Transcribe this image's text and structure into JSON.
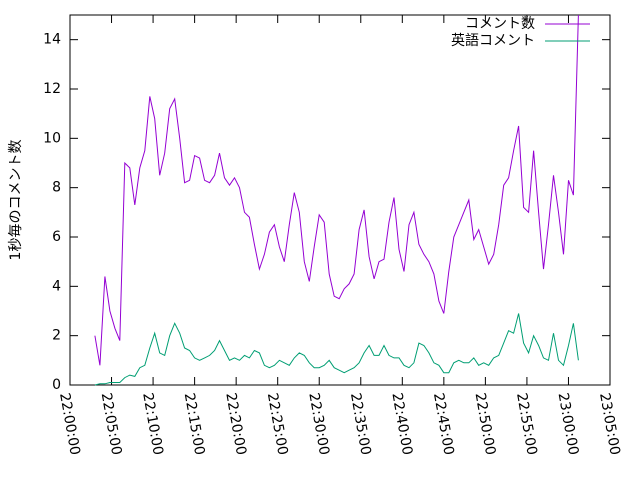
{
  "chart_data": {
    "type": "line",
    "y_label": "1秒毎のコメント数",
    "x": [
      "22:03:00",
      "22:03:36",
      "22:04:12",
      "22:04:48",
      "22:05:24",
      "22:06:00",
      "22:06:36",
      "22:07:12",
      "22:07:48",
      "22:08:24",
      "22:09:00",
      "22:09:36",
      "22:10:12",
      "22:10:48",
      "22:11:24",
      "22:12:00",
      "22:12:36",
      "22:13:12",
      "22:13:48",
      "22:14:24",
      "22:15:00",
      "22:15:36",
      "22:16:12",
      "22:16:48",
      "22:17:24",
      "22:18:00",
      "22:18:36",
      "22:19:12",
      "22:19:48",
      "22:20:24",
      "22:21:00",
      "22:21:36",
      "22:22:12",
      "22:22:48",
      "22:23:24",
      "22:24:00",
      "22:24:36",
      "22:25:12",
      "22:25:48",
      "22:26:24",
      "22:27:00",
      "22:27:36",
      "22:28:12",
      "22:28:48",
      "22:29:24",
      "22:30:00",
      "22:30:36",
      "22:31:12",
      "22:31:48",
      "22:32:24",
      "22:33:00",
      "22:33:36",
      "22:34:12",
      "22:34:48",
      "22:35:24",
      "22:36:00",
      "22:36:36",
      "22:37:12",
      "22:37:48",
      "22:38:24",
      "22:39:00",
      "22:39:36",
      "22:40:12",
      "22:40:48",
      "22:41:24",
      "22:42:00",
      "22:42:36",
      "22:43:12",
      "22:43:48",
      "22:44:24",
      "22:45:00",
      "22:45:36",
      "22:46:12",
      "22:46:48",
      "22:47:24",
      "22:48:00",
      "22:48:36",
      "22:49:12",
      "22:49:48",
      "22:50:24",
      "22:51:00",
      "22:51:36",
      "22:52:12",
      "22:52:48",
      "22:53:24",
      "22:54:00",
      "22:54:36",
      "22:55:12",
      "22:55:48",
      "22:56:24",
      "22:57:00",
      "22:57:36",
      "22:58:12",
      "22:58:48",
      "22:59:24",
      "23:00:00",
      "23:00:36",
      "23:01:12"
    ],
    "series": [
      {
        "name": "コメント数",
        "color": "#9400d3",
        "values": [
          2.0,
          0.8,
          4.4,
          3.0,
          2.3,
          1.8,
          9.0,
          8.8,
          7.3,
          8.8,
          9.5,
          11.7,
          10.8,
          8.5,
          9.4,
          11.2,
          11.6,
          10.0,
          8.2,
          8.3,
          9.3,
          9.2,
          8.3,
          8.2,
          8.5,
          9.4,
          8.4,
          8.1,
          8.4,
          8.0,
          7.0,
          6.8,
          5.7,
          4.7,
          5.3,
          6.2,
          6.5,
          5.6,
          5.0,
          6.5,
          7.8,
          7.0,
          5.0,
          4.2,
          5.6,
          6.9,
          6.6,
          4.5,
          3.6,
          3.5,
          3.9,
          4.1,
          4.5,
          6.3,
          7.1,
          5.2,
          4.3,
          5.0,
          5.1,
          6.6,
          7.6,
          5.5,
          4.6,
          6.5,
          7.0,
          5.7,
          5.3,
          5.0,
          4.5,
          3.4,
          2.9,
          4.6,
          6.0,
          6.5,
          7.0,
          7.5,
          5.9,
          6.3,
          5.6,
          4.9,
          5.3,
          6.5,
          8.1,
          8.4,
          9.5,
          10.5,
          7.2,
          7.0,
          9.5,
          7.0,
          4.7,
          6.5,
          8.5,
          7.0,
          5.3,
          8.3,
          7.7,
          15.0
        ]
      },
      {
        "name": "英語コメント",
        "color": "#009e73",
        "values": [
          0.0,
          0.05,
          0.05,
          0.1,
          0.1,
          0.1,
          0.3,
          0.4,
          0.35,
          0.7,
          0.8,
          1.5,
          2.1,
          1.3,
          1.2,
          2.0,
          2.5,
          2.1,
          1.5,
          1.4,
          1.1,
          1.0,
          1.1,
          1.2,
          1.4,
          1.8,
          1.4,
          1.0,
          1.1,
          1.0,
          1.2,
          1.1,
          1.4,
          1.3,
          0.8,
          0.7,
          0.8,
          1.0,
          0.9,
          0.8,
          1.1,
          1.3,
          1.2,
          0.9,
          0.7,
          0.7,
          0.8,
          1.0,
          0.7,
          0.6,
          0.5,
          0.6,
          0.7,
          0.9,
          1.3,
          1.6,
          1.2,
          1.2,
          1.6,
          1.2,
          1.1,
          1.1,
          0.8,
          0.7,
          0.9,
          1.7,
          1.6,
          1.3,
          0.9,
          0.8,
          0.5,
          0.5,
          0.9,
          1.0,
          0.9,
          0.9,
          1.1,
          0.8,
          0.9,
          0.8,
          1.1,
          1.2,
          1.7,
          2.2,
          2.1,
          2.9,
          1.7,
          1.3,
          2.0,
          1.6,
          1.1,
          1.0,
          2.1,
          1.0,
          0.8,
          1.6,
          2.5,
          1.0
        ]
      }
    ],
    "xlim": [
      "22:00:00",
      "23:05:00"
    ],
    "xticks": [
      "22:00:00",
      "22:05:00",
      "22:10:00",
      "22:15:00",
      "22:20:00",
      "22:25:00",
      "22:30:00",
      "22:35:00",
      "22:40:00",
      "22:45:00",
      "22:50:00",
      "22:55:00",
      "23:00:00",
      "23:05:00"
    ],
    "ylim": [
      0,
      15
    ],
    "yticks": [
      0,
      2,
      4,
      6,
      8,
      10,
      12,
      14
    ],
    "legend": "top-right"
  }
}
